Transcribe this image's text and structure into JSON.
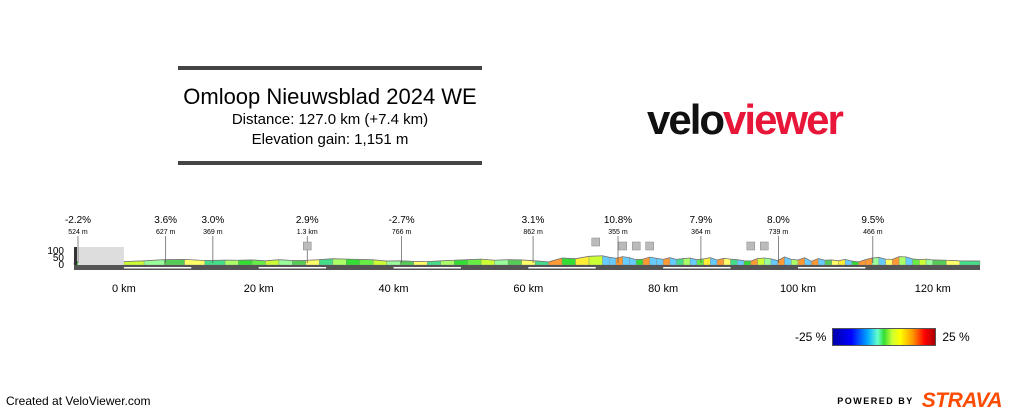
{
  "header": {
    "title": "Omloop Nieuwsblad 2024 WE",
    "distance": "Distance: 127.0 km (+7.4 km)",
    "elevation": "Elevation gain: 1,151 m"
  },
  "logo": {
    "part1": "velo",
    "part2": "viewer",
    "color_dark": "#111111",
    "color_red": "#e8173a"
  },
  "legend": {
    "min_label": "-25 %",
    "max_label": "25 %"
  },
  "footer": {
    "created": "Created at VeloViewer.com",
    "powered": "POWERED BY",
    "brand": "STRAVA",
    "brand_color": "#fc4c02"
  },
  "chart_data": {
    "type": "area",
    "title": "",
    "xlabel": "",
    "ylabel": "",
    "xlim": [
      -7.4,
      127.0
    ],
    "ylim": [
      0,
      100
    ],
    "yticks": [
      0,
      50,
      100
    ],
    "xticks": [
      0,
      20,
      40,
      60,
      80,
      100,
      120
    ],
    "xtick_labels": [
      "0 km",
      "20 km",
      "40 km",
      "60 km",
      "80 km",
      "100 km",
      "120 km"
    ],
    "grid": false,
    "annotations": [
      {
        "x": -7.4,
        "grade": "-2.2%",
        "length": "524 m"
      },
      {
        "x": 6.2,
        "grade": "3.6%",
        "length": "627 m"
      },
      {
        "x": 13.2,
        "grade": "3.0%",
        "length": "369 m"
      },
      {
        "x": 27.2,
        "grade": "2.9%",
        "length": "1.3 km"
      },
      {
        "x": 41.2,
        "grade": "-2.7%",
        "length": "766 m"
      },
      {
        "x": 60.7,
        "grade": "3.1%",
        "length": "862 m"
      },
      {
        "x": 73.3,
        "grade": "10.8%",
        "length": "355 m"
      },
      {
        "x": 85.6,
        "grade": "7.9%",
        "length": "364 m"
      },
      {
        "x": 97.1,
        "grade": "8.0%",
        "length": "739 m"
      },
      {
        "x": 111.1,
        "grade": "9.5%",
        "length": "466 m"
      }
    ],
    "profile": {
      "x": [
        -7.4,
        -4,
        0,
        3,
        6,
        9,
        12,
        15,
        17,
        19,
        21,
        23,
        25,
        27,
        29,
        31,
        33,
        35,
        37,
        39,
        41,
        43,
        45,
        47,
        49,
        51,
        53,
        55,
        57,
        59,
        61,
        63,
        65,
        67,
        69,
        71,
        72,
        73,
        74,
        75,
        76,
        77,
        78,
        79,
        80,
        81,
        82,
        83,
        84,
        85,
        86,
        87,
        88,
        89,
        90,
        91,
        92,
        93,
        94,
        95,
        96,
        97,
        98,
        99,
        100,
        101,
        102,
        103,
        104,
        105,
        106,
        107,
        108,
        109,
        110,
        111,
        112,
        113,
        114,
        115,
        116,
        117,
        118,
        119,
        120,
        122,
        124,
        127
      ],
      "y": [
        22,
        20,
        24,
        30,
        38,
        40,
        32,
        35,
        34,
        36,
        30,
        38,
        32,
        33,
        38,
        45,
        42,
        40,
        37,
        28,
        30,
        26,
        24,
        30,
        34,
        38,
        42,
        34,
        38,
        36,
        30,
        22,
        50,
        45,
        62,
        66,
        55,
        48,
        60,
        52,
        38,
        42,
        56,
        48,
        40,
        52,
        40,
        46,
        50,
        38,
        44,
        52,
        36,
        48,
        42,
        38,
        30,
        28,
        46,
        50,
        44,
        32,
        58,
        40,
        36,
        52,
        26,
        46,
        34,
        36,
        30,
        40,
        28,
        22,
        38,
        50,
        54,
        42,
        40,
        60,
        58,
        44,
        38,
        42,
        36,
        34,
        30,
        28
      ]
    }
  }
}
